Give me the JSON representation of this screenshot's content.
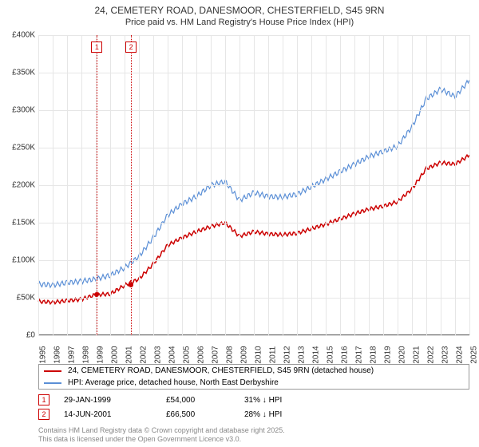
{
  "title": "24, CEMETERY ROAD, DANESMOOR, CHESTERFIELD, S45 9RN",
  "subtitle": "Price paid vs. HM Land Registry's House Price Index (HPI)",
  "chart": {
    "type": "line",
    "background_color": "#ffffff",
    "grid_color": "#e6e6e6",
    "axis_color": "#666666",
    "x": {
      "min": 1995,
      "max": 2025,
      "ticks": [
        1995,
        1996,
        1997,
        1998,
        1999,
        2000,
        2001,
        2002,
        2003,
        2004,
        2005,
        2006,
        2007,
        2008,
        2009,
        2010,
        2011,
        2012,
        2013,
        2014,
        2015,
        2016,
        2017,
        2018,
        2019,
        2020,
        2021,
        2022,
        2023,
        2024,
        2025
      ],
      "label_fontsize": 10,
      "rotation": -90
    },
    "y": {
      "min": 0,
      "max": 400000,
      "ticks": [
        0,
        50000,
        100000,
        150000,
        200000,
        250000,
        300000,
        350000,
        400000
      ],
      "tick_labels": [
        "£0",
        "£50K",
        "£100K",
        "£150K",
        "£200K",
        "£250K",
        "£300K",
        "£350K",
        "£400K"
      ],
      "label_fontsize": 10
    },
    "series": [
      {
        "id": "property",
        "label": "24, CEMETERY ROAD, DANESMOOR, CHESTERFIELD, S45 9RN (detached house)",
        "color": "#cc0000",
        "line_width": 1.5,
        "points": [
          [
            1995,
            45000
          ],
          [
            1996,
            44000
          ],
          [
            1997,
            46000
          ],
          [
            1998,
            48000
          ],
          [
            1999,
            54000
          ],
          [
            2000,
            55000
          ],
          [
            2001,
            66500
          ],
          [
            2002,
            75000
          ],
          [
            2003,
            95000
          ],
          [
            2004,
            120000
          ],
          [
            2005,
            130000
          ],
          [
            2006,
            138000
          ],
          [
            2007,
            145000
          ],
          [
            2008,
            150000
          ],
          [
            2009,
            132000
          ],
          [
            2010,
            138000
          ],
          [
            2011,
            135000
          ],
          [
            2012,
            134000
          ],
          [
            2013,
            136000
          ],
          [
            2014,
            142000
          ],
          [
            2015,
            148000
          ],
          [
            2016,
            155000
          ],
          [
            2017,
            162000
          ],
          [
            2018,
            168000
          ],
          [
            2019,
            172000
          ],
          [
            2020,
            178000
          ],
          [
            2021,
            195000
          ],
          [
            2022,
            222000
          ],
          [
            2023,
            230000
          ],
          [
            2024,
            228000
          ],
          [
            2025,
            240000
          ]
        ]
      },
      {
        "id": "hpi",
        "label": "HPI: Average price, detached house, North East Derbyshire",
        "color": "#5b8fd6",
        "line_width": 1.2,
        "points": [
          [
            1995,
            68000
          ],
          [
            1996,
            67000
          ],
          [
            1997,
            70000
          ],
          [
            1998,
            72000
          ],
          [
            1999,
            75000
          ],
          [
            2000,
            80000
          ],
          [
            2001,
            90000
          ],
          [
            2002,
            105000
          ],
          [
            2003,
            130000
          ],
          [
            2004,
            160000
          ],
          [
            2005,
            175000
          ],
          [
            2006,
            185000
          ],
          [
            2007,
            200000
          ],
          [
            2008,
            205000
          ],
          [
            2009,
            180000
          ],
          [
            2010,
            190000
          ],
          [
            2011,
            185000
          ],
          [
            2012,
            184000
          ],
          [
            2013,
            188000
          ],
          [
            2014,
            198000
          ],
          [
            2015,
            208000
          ],
          [
            2016,
            218000
          ],
          [
            2017,
            228000
          ],
          [
            2018,
            238000
          ],
          [
            2019,
            245000
          ],
          [
            2020,
            252000
          ],
          [
            2021,
            278000
          ],
          [
            2022,
            315000
          ],
          [
            2023,
            328000
          ],
          [
            2024,
            318000
          ],
          [
            2025,
            340000
          ]
        ]
      }
    ],
    "markers": [
      {
        "id": "1",
        "year": 1999.08,
        "date": "29-JAN-1999",
        "price": "£54,000",
        "pct": "31% ↓ HPI",
        "color": "#cc0000"
      },
      {
        "id": "2",
        "year": 2001.45,
        "date": "14-JUN-2001",
        "price": "£66,500",
        "pct": "28% ↓ HPI",
        "color": "#cc0000"
      }
    ],
    "marker_dots": [
      {
        "year": 1999.08,
        "value": 54000,
        "color": "#cc0000"
      },
      {
        "year": 2001.45,
        "value": 66500,
        "color": "#cc0000"
      }
    ]
  },
  "legend": {
    "border_color": "#999999",
    "fontsize": 10,
    "items": [
      {
        "color": "#cc0000",
        "label": "24, CEMETERY ROAD, DANESMOOR, CHESTERFIELD, S45 9RN (detached house)"
      },
      {
        "color": "#5b8fd6",
        "label": "HPI: Average price, detached house, North East Derbyshire"
      }
    ]
  },
  "footer": {
    "line1": "Contains HM Land Registry data © Crown copyright and database right 2025.",
    "line2": "This data is licensed under the Open Government Licence v3.0."
  }
}
